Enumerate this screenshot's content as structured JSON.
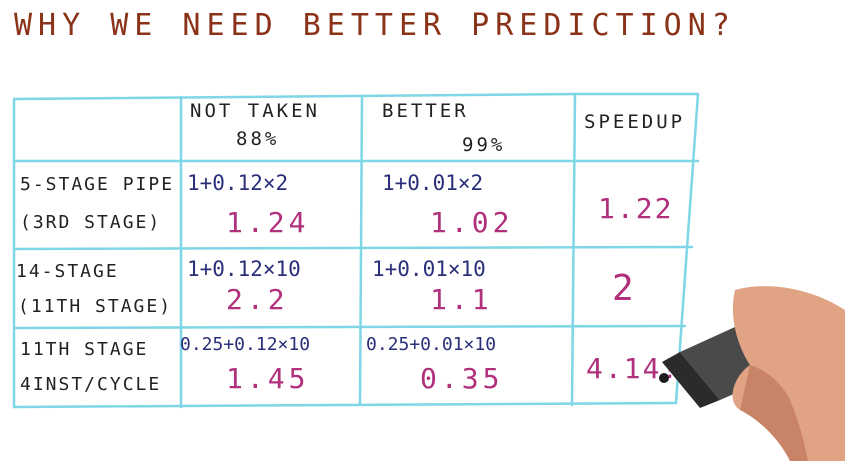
{
  "title": "WHY WE NEED BETTER PREDICTION?",
  "table": {
    "header": {
      "not_taken_label": "NOT TAKEN",
      "not_taken_pct": "88%",
      "better_label": "BETTER",
      "better_pct": "99%",
      "speedup_label": "SPEEDUP"
    },
    "rows": [
      {
        "label_line1": "5-STAGE PIPE",
        "label_line2": "(3RD STAGE)",
        "not_taken_formula": "1+0.12×2",
        "not_taken_result": "1.24",
        "better_formula": "1+0.01×2",
        "better_result": "1.02",
        "speedup": "1.22"
      },
      {
        "label_line1": "14-STAGE",
        "label_line2": "(11TH STAGE)",
        "not_taken_formula": "1+0.12×10",
        "not_taken_result": "2.2",
        "better_formula": "1+0.01×10",
        "better_result": "1.1",
        "speedup": "2"
      },
      {
        "label_line1": "11TH STAGE",
        "label_line2": "4INST/CYCLE",
        "not_taken_formula": "0.25+0.12×10",
        "not_taken_result": "1.45",
        "better_formula": "0.25+0.01×10",
        "better_result": "0.35",
        "speedup": "4.14!"
      }
    ]
  },
  "colors": {
    "title": "#8a3318",
    "grid": "#7fd6e6",
    "formula": "#2a2f7a",
    "result": "#b0307c"
  }
}
